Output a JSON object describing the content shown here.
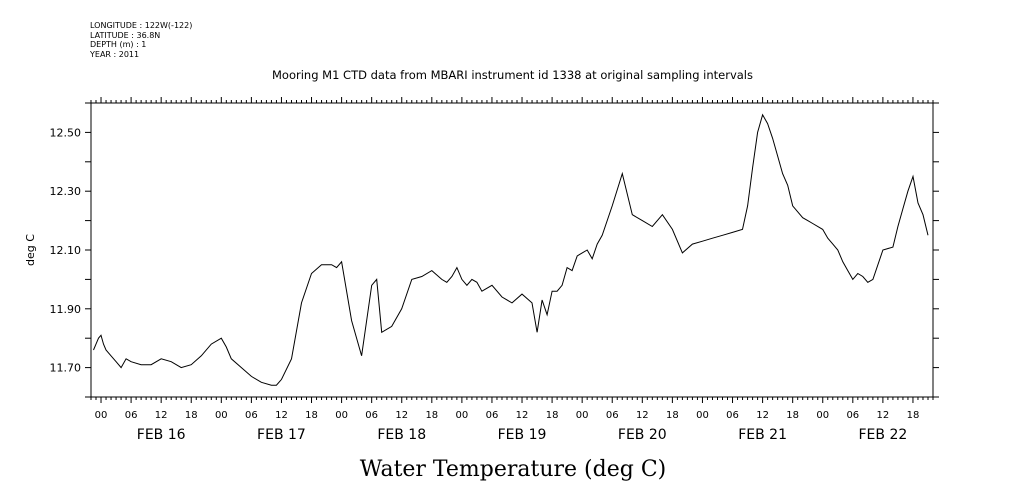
{
  "header": {
    "longitude": "LONGITUDE : 122W(-122)",
    "latitude": "LATITUDE : 36.8N",
    "depth": "DEPTH (m) : 1",
    "year": "YEAR : 2011"
  },
  "chart_data": {
    "type": "line",
    "title": "Mooring M1 CTD data from MBARI instrument id 1338 at original sampling intervals",
    "xlabel": "Water Temperature (deg C)",
    "ylabel": "deg C",
    "ylim": [
      11.6,
      12.6
    ],
    "y_ticks": [
      "11.70",
      "11.90",
      "12.10",
      "12.30",
      "12.50"
    ],
    "x_range_hours": [
      -2,
      166
    ],
    "hour_ticks": [
      "00",
      "06",
      "12",
      "18",
      "00",
      "06",
      "12",
      "18",
      "00",
      "06",
      "12",
      "18",
      "00",
      "06",
      "12",
      "18",
      "00",
      "06",
      "12",
      "18",
      "00",
      "06",
      "12",
      "18",
      "00",
      "06",
      "12",
      "18"
    ],
    "day_labels": [
      "FEB 16",
      "FEB 17",
      "FEB 18",
      "FEB 19",
      "FEB 20",
      "FEB 21",
      "FEB 22"
    ],
    "grid": false,
    "series": [
      {
        "x_hours_since_feb16_00": [
          -1.5,
          -1,
          -0.5,
          0,
          0.5,
          1,
          2,
          3,
          4,
          5,
          6,
          8,
          10,
          12,
          14,
          16,
          18,
          20,
          22,
          24,
          25,
          26,
          28,
          30,
          32,
          34,
          35,
          36,
          38,
          40,
          42,
          44,
          46,
          47,
          48,
          50,
          52,
          54,
          55,
          56,
          58,
          60,
          62,
          64,
          66,
          68,
          69,
          70,
          71,
          72,
          73,
          74,
          75,
          76,
          78,
          80,
          82,
          84,
          86,
          87,
          88,
          89,
          90,
          91,
          92,
          93,
          94,
          95,
          96,
          97,
          98,
          99,
          100,
          102,
          104,
          106,
          108,
          110,
          112,
          114,
          116,
          118,
          120,
          122,
          124,
          126,
          128,
          129,
          130,
          131,
          132,
          133,
          134,
          135,
          136,
          137,
          138,
          139,
          140,
          141,
          142,
          144,
          145,
          146,
          147,
          148,
          149,
          150,
          151,
          152,
          153,
          154,
          156,
          158,
          159,
          160,
          161,
          162,
          163,
          164,
          165
        ],
        "y": [
          11.76,
          11.78,
          11.8,
          11.81,
          11.78,
          11.76,
          11.74,
          11.72,
          11.7,
          11.73,
          11.72,
          11.71,
          11.71,
          11.73,
          11.72,
          11.7,
          11.71,
          11.74,
          11.78,
          11.8,
          11.77,
          11.73,
          11.7,
          11.67,
          11.65,
          11.64,
          11.64,
          11.66,
          11.73,
          11.92,
          12.02,
          12.05,
          12.05,
          12.04,
          12.06,
          11.86,
          11.74,
          11.98,
          12.0,
          11.82,
          11.84,
          11.9,
          12.0,
          12.01,
          12.03,
          12.0,
          11.99,
          12.01,
          12.04,
          12.0,
          11.98,
          12.0,
          11.99,
          11.96,
          11.98,
          11.94,
          11.92,
          11.95,
          11.92,
          11.82,
          11.93,
          11.88,
          11.96,
          11.96,
          11.98,
          12.04,
          12.03,
          12.08,
          12.09,
          12.1,
          12.07,
          12.12,
          12.15,
          12.25,
          12.36,
          12.22,
          12.2,
          12.18,
          12.22,
          12.17,
          12.09,
          12.12,
          12.13,
          12.14,
          12.15,
          12.16,
          12.17,
          12.25,
          12.38,
          12.5,
          12.56,
          12.53,
          12.48,
          12.42,
          12.36,
          12.32,
          12.25,
          12.23,
          12.21,
          12.2,
          12.19,
          12.17,
          12.14,
          12.12,
          12.1,
          12.06,
          12.03,
          12.0,
          12.02,
          12.01,
          11.99,
          12.0,
          12.1,
          12.11,
          12.18,
          12.24,
          12.3,
          12.35,
          12.26,
          12.22,
          12.15
        ]
      }
    ]
  }
}
